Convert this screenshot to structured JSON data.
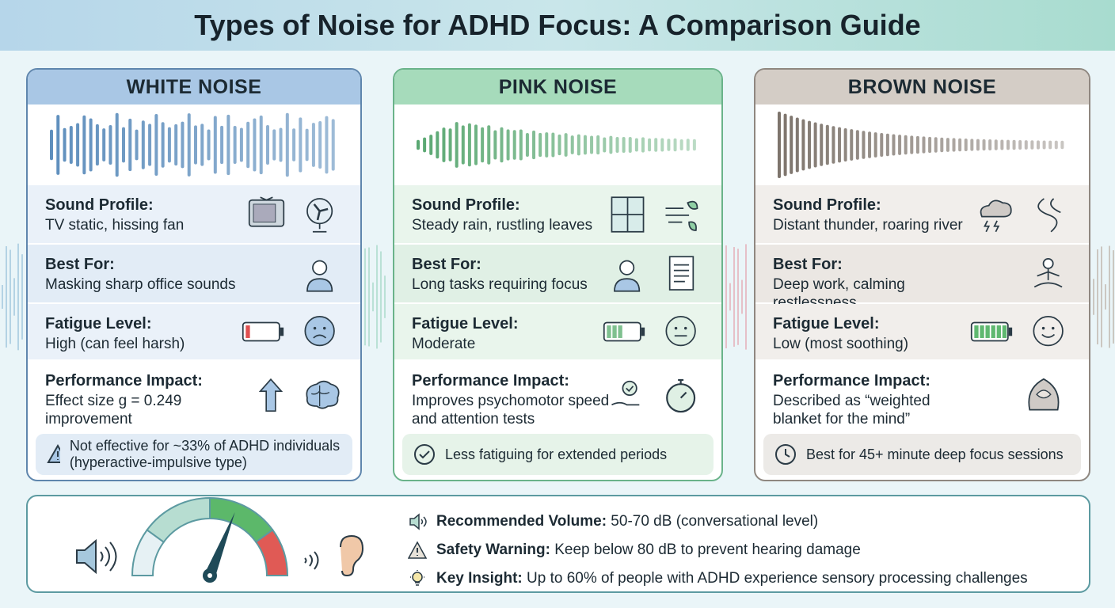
{
  "title": "Types of Noise for ADHD Focus: A Comparison Guide",
  "colors": {
    "white": "#5f86ad",
    "pink": "#6ab38a",
    "brown": "#8f8780"
  },
  "cards": [
    {
      "name": "WHITE NOISE",
      "sound_label": "Sound Profile:",
      "sound": "TV static, hissing fan",
      "best_label": "Best For:",
      "best": "Masking sharp office sounds",
      "fatigue_label": "Fatigue Level:",
      "fatigue": "High (can feel harsh)",
      "fatigue_battery": 0.15,
      "perf_label": "Performance Impact:",
      "perf": "Effect size g = 0.249 improvement",
      "note": "Not effective for ~33% of ADHD individuals (hyperactive-impulsive type)",
      "icons": [
        "tv-icon",
        "fan-icon",
        "headset-person-icon",
        "frowning-face-icon",
        "arrow-up-icon",
        "brain-icon",
        "warning-icon"
      ]
    },
    {
      "name": "PINK NOISE",
      "sound_label": "Sound Profile:",
      "sound": "Steady rain, rustling leaves",
      "best_label": "Best For:",
      "best": "Long tasks requiring focus",
      "fatigue_label": "Fatigue Level:",
      "fatigue": "Moderate",
      "fatigue_battery": 0.5,
      "perf_label": "Performance Impact:",
      "perf": "Improves psychomotor speed and attention tests",
      "note": "Less fatiguing for extended periods",
      "icons": [
        "rainy-window-icon",
        "wind-leaves-icon",
        "laptop-person-icon",
        "document-icon",
        "neutral-face-icon",
        "check-hand-icon",
        "stopwatch-icon",
        "check-circle-icon"
      ]
    },
    {
      "name": "BROWN NOISE",
      "sound_label": "Sound Profile:",
      "sound": "Distant thunder, roaring river",
      "best_label": "Best For:",
      "best": "Deep work, calming restlessness",
      "fatigue_label": "Fatigue Level:",
      "fatigue": "Low (most soothing)",
      "fatigue_battery": 1.0,
      "perf_label": "Performance Impact:",
      "perf": "Described as “weighted blanket for the mind”",
      "note": "Best for 45+ minute deep focus sessions",
      "icons": [
        "thunder-cloud-icon",
        "river-icon",
        "meditation-icon",
        "smiling-face-icon",
        "blanket-brain-icon",
        "clock-icon"
      ]
    }
  ],
  "bottom": {
    "gauge_level": 0.62,
    "facts": [
      {
        "icon": "speaker-icon",
        "label": "Recommended Volume:",
        "text": " 50-70 dB (conversational level)"
      },
      {
        "icon": "warning-icon",
        "label": "Safety Warning:",
        "text": " Keep below 80 dB to prevent hearing damage"
      },
      {
        "icon": "lightbulb-icon",
        "label": "Key Insight:",
        "text": " Up to 60% of people with ADHD experience sensory processing challenges"
      }
    ]
  }
}
